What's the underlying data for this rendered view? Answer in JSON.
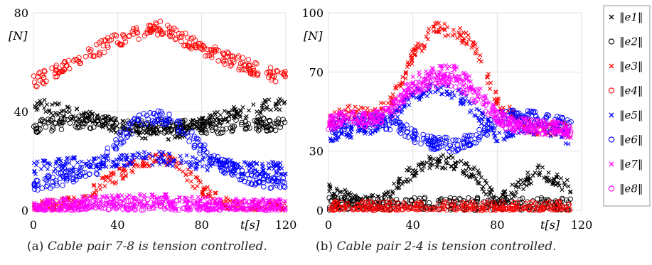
{
  "figure": {
    "caption_a_prefix": "(a)",
    "caption_a_text": "Cable pair 7-8 is tension controlled.",
    "caption_b_prefix": "(b)",
    "caption_b_text": "Cable pair 2-4 is tension controlled."
  },
  "legend": {
    "entries": [
      {
        "label": "‖e1‖",
        "marker": "x",
        "color": "#000000"
      },
      {
        "label": "‖e2‖",
        "marker": "o",
        "color": "#000000"
      },
      {
        "label": "‖e3‖",
        "marker": "x",
        "color": "#ff0000"
      },
      {
        "label": "‖e4‖",
        "marker": "o",
        "color": "#ff0000"
      },
      {
        "label": "‖e5‖",
        "marker": "x",
        "color": "#0000ff"
      },
      {
        "label": "‖e6‖",
        "marker": "o",
        "color": "#0000ff"
      },
      {
        "label": "‖e7‖",
        "marker": "x",
        "color": "#ff00ff"
      },
      {
        "label": "‖e8‖",
        "marker": "o",
        "color": "#ff00ff"
      }
    ]
  },
  "chart_data": [
    {
      "type": "scatter",
      "title": "",
      "xlabel": "t[s]",
      "ylabel": "[N]",
      "xlim": [
        0,
        120
      ],
      "ylim": [
        0,
        80
      ],
      "xticks": [
        0,
        40,
        80,
        120
      ],
      "yticks": [
        0,
        40,
        80
      ],
      "grid": true,
      "series": [
        {
          "name": "‖e1‖",
          "marker": "x",
          "color": "#000000",
          "x": [
            0,
            10,
            20,
            30,
            40,
            50,
            60,
            70,
            80,
            90,
            100,
            110,
            120
          ],
          "y": [
            43,
            41,
            39,
            37,
            34,
            32,
            31,
            32,
            35,
            38,
            40,
            42,
            44
          ]
        },
        {
          "name": "‖e2‖",
          "marker": "o",
          "color": "#000000",
          "x": [
            0,
            10,
            20,
            30,
            40,
            50,
            60,
            70,
            80,
            90,
            100,
            110,
            120
          ],
          "y": [
            34,
            35,
            36,
            36,
            35,
            34,
            34,
            34,
            34,
            34,
            35,
            35,
            34
          ]
        },
        {
          "name": "‖e3‖",
          "marker": "x",
          "color": "#ff0000",
          "x": [
            0,
            10,
            20,
            30,
            40,
            50,
            60,
            70,
            80,
            90,
            100,
            110,
            120
          ],
          "y": [
            1,
            2,
            4,
            9,
            14,
            19,
            22,
            17,
            9,
            3,
            1,
            1,
            1
          ]
        },
        {
          "name": "‖e4‖",
          "marker": "o",
          "color": "#ff0000",
          "x": [
            0,
            10,
            20,
            30,
            40,
            50,
            60,
            70,
            80,
            90,
            100,
            110,
            120
          ],
          "y": [
            52,
            56,
            61,
            65,
            69,
            72,
            74,
            70,
            66,
            62,
            59,
            56,
            54
          ]
        },
        {
          "name": "‖e5‖",
          "marker": "x",
          "color": "#0000ff",
          "x": [
            0,
            10,
            20,
            30,
            40,
            50,
            60,
            70,
            80,
            90,
            100,
            110,
            120
          ],
          "y": [
            17,
            18,
            19,
            19,
            20,
            21,
            21,
            20,
            19,
            18,
            17,
            17,
            17
          ]
        },
        {
          "name": "‖e6‖",
          "marker": "o",
          "color": "#0000ff",
          "x": [
            0,
            10,
            20,
            30,
            40,
            50,
            60,
            70,
            80,
            90,
            100,
            110,
            120
          ],
          "y": [
            10,
            12,
            14,
            17,
            28,
            36,
            38,
            34,
            25,
            18,
            14,
            12,
            11
          ]
        },
        {
          "name": "‖e7‖",
          "marker": "x",
          "color": "#ff00ff",
          "x": [
            0,
            10,
            20,
            30,
            40,
            50,
            60,
            70,
            80,
            90,
            100,
            110,
            120
          ],
          "y": [
            2,
            2,
            3,
            3,
            4,
            4,
            4,
            3,
            3,
            2,
            2,
            2,
            2
          ]
        },
        {
          "name": "‖e8‖",
          "marker": "o",
          "color": "#ff00ff",
          "x": [
            0,
            10,
            20,
            30,
            40,
            50,
            60,
            70,
            80,
            90,
            100,
            110,
            120
          ],
          "y": [
            1,
            1,
            1,
            2,
            2,
            2,
            2,
            2,
            2,
            1,
            1,
            1,
            1
          ]
        }
      ]
    },
    {
      "type": "scatter",
      "title": "",
      "xlabel": "t[s]",
      "ylabel": "[N]",
      "xlim": [
        0,
        120
      ],
      "ylim": [
        0,
        100
      ],
      "xticks": [
        0,
        40,
        80,
        120
      ],
      "yticks": [
        0,
        30,
        70,
        100
      ],
      "grid": true,
      "series": [
        {
          "name": "‖e1‖",
          "marker": "x",
          "color": "#000000",
          "x": [
            0,
            10,
            20,
            30,
            40,
            50,
            60,
            70,
            80,
            90,
            100,
            110,
            115
          ],
          "y": [
            10,
            6,
            4,
            10,
            20,
            25,
            24,
            18,
            4,
            12,
            20,
            14,
            12
          ]
        },
        {
          "name": "‖e2‖",
          "marker": "o",
          "color": "#000000",
          "x": [
            0,
            10,
            20,
            30,
            40,
            50,
            60,
            70,
            80,
            90,
            100,
            110,
            115
          ],
          "y": [
            3,
            3,
            3,
            3,
            3,
            3,
            3,
            3,
            3,
            3,
            3,
            3,
            3
          ]
        },
        {
          "name": "‖e3‖",
          "marker": "x",
          "color": "#ff0000",
          "x": [
            0,
            10,
            20,
            30,
            40,
            50,
            60,
            70,
            80,
            90,
            100,
            110,
            115
          ],
          "y": [
            45,
            50,
            48,
            55,
            78,
            92,
            91,
            82,
            55,
            45,
            40,
            42,
            40
          ]
        },
        {
          "name": "‖e4‖",
          "marker": "o",
          "color": "#ff0000",
          "x": [
            0,
            10,
            20,
            30,
            40,
            50,
            60,
            70,
            80,
            90,
            100,
            110,
            115
          ],
          "y": [
            1,
            1,
            1,
            1,
            1,
            1,
            1,
            1,
            1,
            1,
            1,
            1,
            1
          ]
        },
        {
          "name": "‖e5‖",
          "marker": "x",
          "color": "#0000ff",
          "x": [
            0,
            10,
            20,
            30,
            40,
            50,
            60,
            70,
            80,
            90,
            100,
            110,
            115
          ],
          "y": [
            38,
            40,
            42,
            48,
            58,
            62,
            60,
            50,
            38,
            40,
            42,
            38,
            36
          ]
        },
        {
          "name": "‖e6‖",
          "marker": "o",
          "color": "#0000ff",
          "x": [
            0,
            10,
            20,
            30,
            40,
            50,
            60,
            70,
            80,
            90,
            100,
            110,
            115
          ],
          "y": [
            42,
            44,
            46,
            44,
            38,
            34,
            33,
            36,
            46,
            48,
            46,
            44,
            42
          ]
        },
        {
          "name": "‖e7‖",
          "marker": "x",
          "color": "#ff00ff",
          "x": [
            0,
            10,
            20,
            30,
            40,
            50,
            60,
            70,
            80,
            90,
            100,
            110,
            115
          ],
          "y": [
            44,
            48,
            46,
            52,
            65,
            70,
            70,
            62,
            48,
            44,
            42,
            42,
            40
          ]
        },
        {
          "name": "‖e8‖",
          "marker": "o",
          "color": "#ff00ff",
          "x": [
            0,
            10,
            20,
            30,
            40,
            50,
            60,
            70,
            80,
            90,
            100,
            110,
            115
          ],
          "y": [
            44,
            47,
            45,
            50,
            62,
            66,
            66,
            58,
            46,
            43,
            42,
            41,
            40
          ]
        }
      ]
    }
  ]
}
